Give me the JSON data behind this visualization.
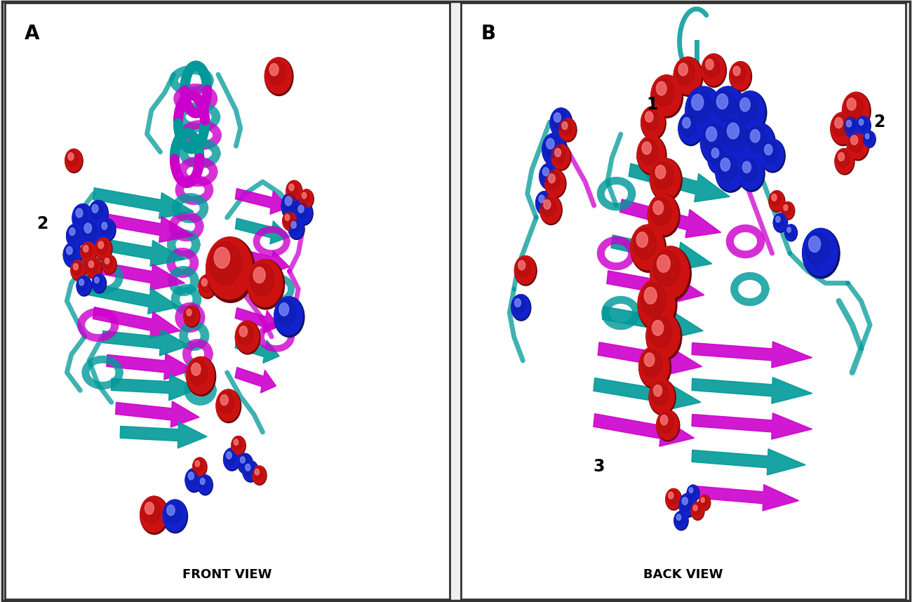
{
  "figure_width": 13.0,
  "figure_height": 8.58,
  "dpi": 100,
  "background_color": "#f0f0f0",
  "panel_bg": "#ffffff",
  "border_color": "#333333",
  "protein_magenta": "#CC00CC",
  "protein_teal": "#009999",
  "sphere_red": "#CC1111",
  "sphere_blue": "#1122CC",
  "label_fontsize": 20,
  "title_fontsize": 13,
  "annotation_fontsize": 17,
  "panel_A_label": "A",
  "panel_A_title": "FRONT VIEW",
  "panel_B_label": "B",
  "panel_B_title": "BACK VIEW"
}
